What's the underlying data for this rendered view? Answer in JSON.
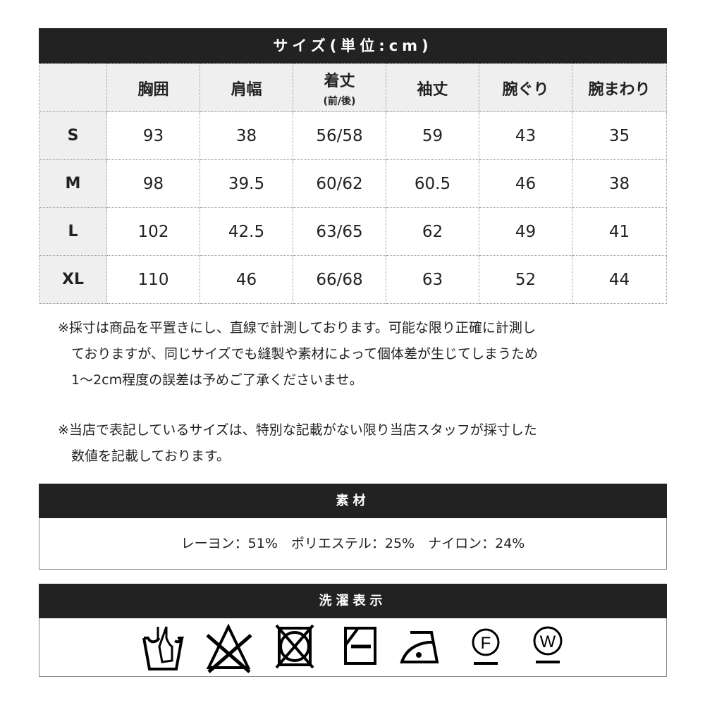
{
  "size_table": {
    "title": "サイズ(単位:cm)",
    "headers": [
      {
        "label": "胸囲",
        "sub": ""
      },
      {
        "label": "肩幅",
        "sub": ""
      },
      {
        "label": "着丈",
        "sub": "(前/後)"
      },
      {
        "label": "袖丈",
        "sub": ""
      },
      {
        "label": "腕ぐり",
        "sub": ""
      },
      {
        "label": "腕まわり",
        "sub": ""
      }
    ],
    "rows": [
      {
        "size": "S",
        "values": [
          "93",
          "38",
          "56/58",
          "59",
          "43",
          "35"
        ]
      },
      {
        "size": "M",
        "values": [
          "98",
          "39.5",
          "60/62",
          "60.5",
          "46",
          "38"
        ]
      },
      {
        "size": "L",
        "values": [
          "102",
          "42.5",
          "63/65",
          "62",
          "49",
          "41"
        ]
      },
      {
        "size": "XL",
        "values": [
          "110",
          "46",
          "66/68",
          "63",
          "52",
          "44"
        ]
      }
    ]
  },
  "notes": [
    [
      "※採寸は商品を平置きにし、直線で計測しております。可能な限り正確に計測し",
      "　ておりますが、同じサイズでも縫製や素材によって個体差が生じてしまうため",
      "　1～2cm程度の誤差は予めご了承くださいませ。"
    ],
    [
      "※当店で表記しているサイズは、特別な記載がない限り当店スタッフが採寸した",
      "　数値を記載しております。"
    ]
  ],
  "material": {
    "title": "素材",
    "text": "レーヨン：51%　ポリエステル：25%　ナイロン：24%"
  },
  "laundry": {
    "title": "洗濯表示",
    "icons": [
      "hand-wash-icon",
      "no-bleach-icon",
      "no-tumble-dry-icon",
      "line-dry-shade-icon",
      "iron-low-icon",
      "dry-clean-f-icon",
      "wet-clean-w-icon"
    ],
    "f_label": "F",
    "w_label": "W"
  }
}
